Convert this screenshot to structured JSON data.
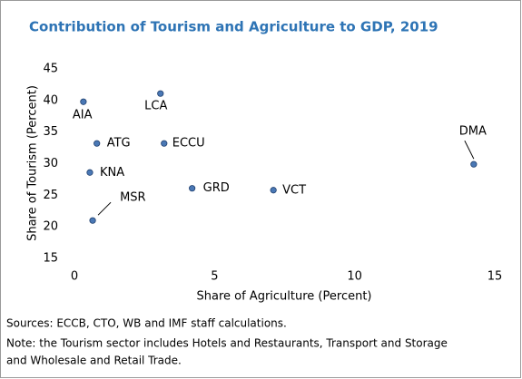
{
  "chart_data": {
    "type": "scatter",
    "title": "Contribution of Tourism and Agriculture to GDP, 2019",
    "x_label": "Share of Agriculture (Percent)",
    "y_label": "Share of Tourism (Percent)",
    "categories": [
      "AIA",
      "LCA",
      "ATG",
      "ECCU",
      "KNA",
      "MSR",
      "GRD",
      "VCT",
      "DMA"
    ],
    "x": [
      0.32,
      3.07,
      0.8,
      3.2,
      0.55,
      0.65,
      4.2,
      7.1,
      14.25
    ],
    "values": [
      39.8,
      41.1,
      33.2,
      33.2,
      28.6,
      21.0,
      26.1,
      25.8,
      29.9
    ],
    "color": "#4a78b5",
    "xlim": [
      0,
      15
    ],
    "xticks": [
      0,
      5,
      10,
      15
    ],
    "ylim": [
      15,
      45
    ],
    "yticks": [
      15,
      20,
      25,
      30,
      35,
      40,
      45
    ],
    "grid": false,
    "notes": [
      "Sources: ECCB, CTO, WB and IMF staff calculations.",
      "Note: the Tourism sector includes Hotels and Restaurants, Transport and Storage",
      "and Wholesale and Retail Trade."
    ]
  }
}
